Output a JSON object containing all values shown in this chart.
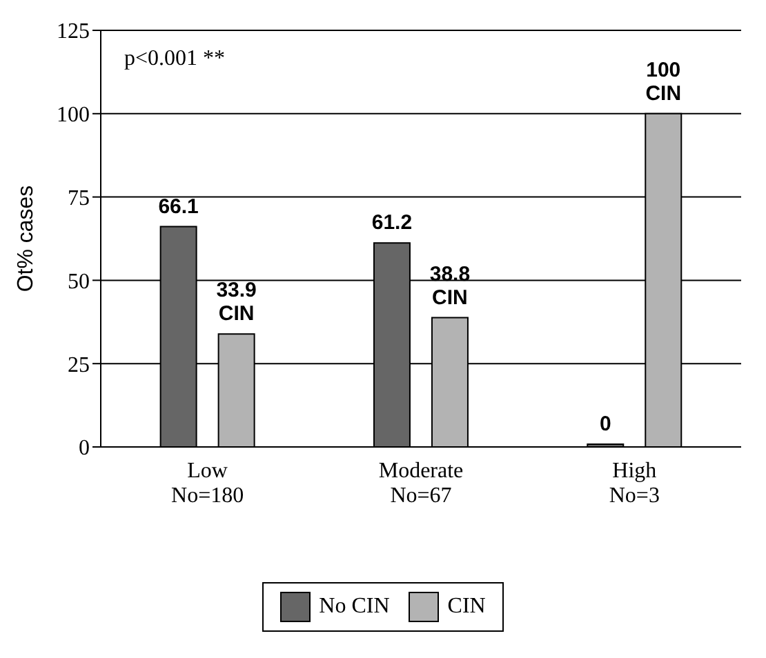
{
  "chart_data": {
    "type": "bar",
    "ylabel": "Ot% cases",
    "categories": [
      "Low\nNo=180",
      "Moderate\nNo=67",
      "High\nNo=3"
    ],
    "series": [
      {
        "name": "No CIN",
        "color": "#666666",
        "values": [
          66.1,
          61.2,
          0
        ],
        "value_labels": [
          "66.1",
          "61.2",
          "0"
        ]
      },
      {
        "name": "CIN",
        "color": "#b3b3b3",
        "values": [
          33.9,
          38.8,
          100
        ],
        "value_labels": [
          "33.9\nCIN",
          "38.8\nCIN",
          "100\nCIN"
        ]
      }
    ],
    "ylim": [
      0,
      125
    ],
    "yticks": [
      0,
      25,
      50,
      75,
      100,
      125
    ],
    "grid": "y",
    "legend": "bottom",
    "annotations": [
      "p<0.001 **"
    ]
  }
}
